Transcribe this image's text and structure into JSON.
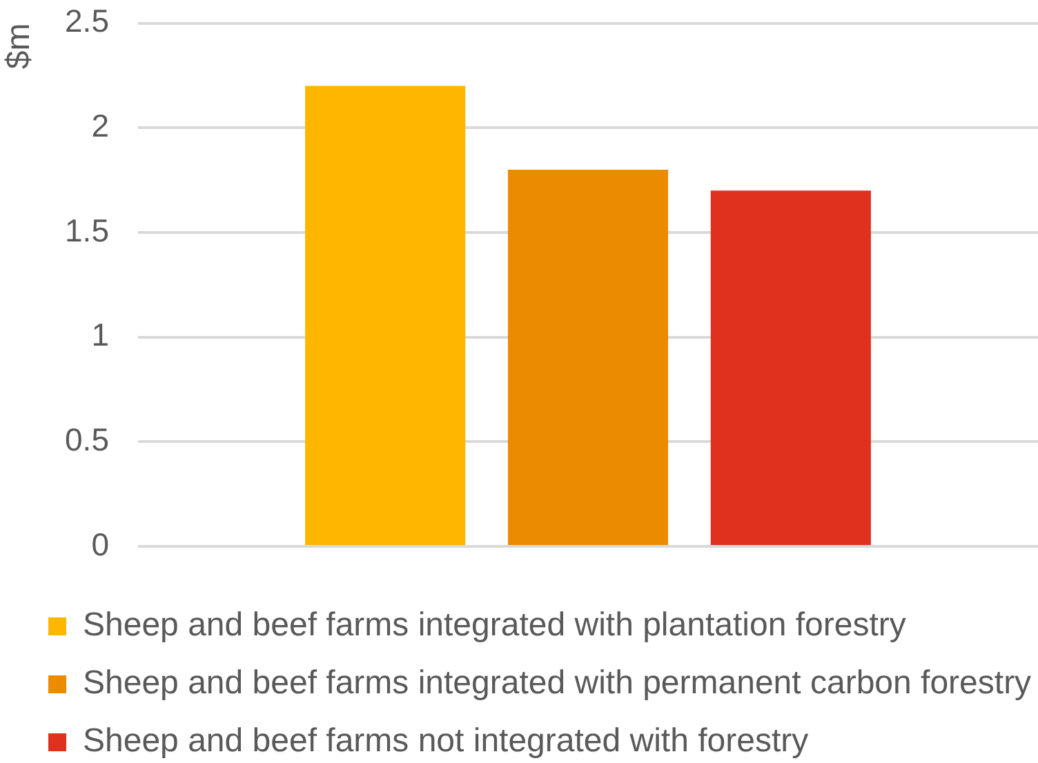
{
  "chart_data": {
    "type": "bar",
    "ylabel": "$m",
    "categories": [
      null
    ],
    "series": [
      {
        "name": "Sheep and beef farms integrated with plantation forestry",
        "color": "#ffb600",
        "values": [
          2.2
        ]
      },
      {
        "name": "Sheep and beef farms integrated with permanent carbon forestry",
        "color": "#eb8c00",
        "values": [
          1.8
        ]
      },
      {
        "name": "Sheep and beef farms not integrated with forestry",
        "color": "#e0301e",
        "values": [
          1.7
        ]
      }
    ],
    "ylim": [
      0,
      2.5
    ],
    "yticks": [
      0,
      0.5,
      1,
      1.5,
      2,
      2.5
    ],
    "grid": "y",
    "legend": "bottom"
  }
}
